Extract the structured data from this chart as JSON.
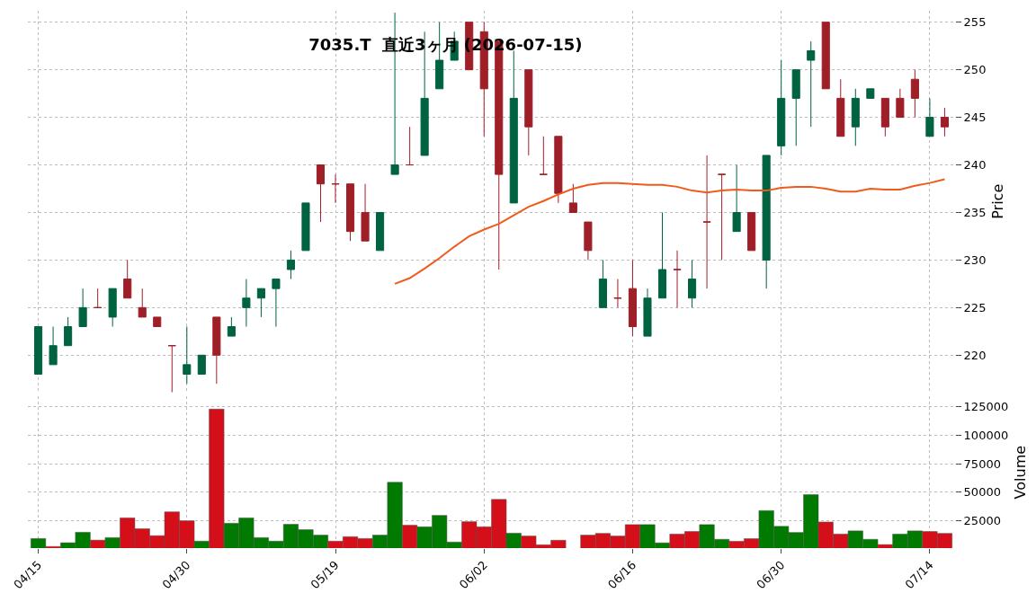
{
  "chart_data": [
    {
      "type": "candlestick",
      "title": "7035.T  直近3ヶ月 (2026-07-15)",
      "ylabel": "Price",
      "ohlc": [
        [
          218,
          223,
          218,
          223
        ],
        [
          219,
          223,
          219,
          221
        ],
        [
          221,
          224,
          221,
          223
        ],
        [
          223,
          227,
          223,
          225
        ],
        [
          225,
          227,
          225,
          225
        ],
        [
          224,
          227,
          223,
          227
        ],
        [
          228,
          230,
          226,
          226
        ],
        [
          225,
          227,
          224,
          224
        ],
        [
          224,
          224,
          223,
          223
        ],
        [
          221,
          221,
          216,
          221
        ],
        [
          218,
          223,
          217,
          219
        ],
        [
          218,
          220,
          218,
          220
        ],
        [
          224,
          224,
          217,
          220
        ],
        [
          222,
          224,
          222,
          223
        ],
        [
          225,
          228,
          223,
          226
        ],
        [
          226,
          227,
          224,
          227
        ],
        [
          227,
          228,
          223,
          228
        ],
        [
          229,
          231,
          228,
          230
        ],
        [
          231,
          236,
          231,
          236
        ],
        [
          240,
          240,
          234,
          238
        ],
        [
          238,
          239,
          236,
          238
        ],
        [
          238,
          238,
          232,
          233
        ],
        [
          235,
          238,
          232,
          232
        ],
        [
          231,
          235,
          231,
          235
        ],
        [
          239,
          256,
          239,
          240
        ],
        [
          240,
          244,
          240,
          240
        ],
        [
          241,
          254,
          241,
          247
        ],
        [
          248,
          255,
          248,
          251
        ],
        [
          251,
          254,
          251,
          253
        ],
        [
          255,
          255,
          250,
          250
        ],
        [
          254,
          255,
          243,
          248
        ],
        [
          253,
          253,
          229,
          239
        ],
        [
          236,
          252,
          236,
          247
        ],
        [
          250,
          250,
          241,
          244
        ],
        [
          239,
          243,
          239,
          239
        ],
        [
          243,
          243,
          236,
          237
        ],
        [
          236,
          238,
          235,
          235
        ],
        [
          234,
          234,
          230,
          231
        ],
        [
          225,
          230,
          225,
          228
        ],
        [
          226,
          228,
          225,
          226
        ],
        [
          227,
          230,
          222,
          223
        ],
        [
          222,
          227,
          222,
          226
        ],
        [
          226,
          235,
          226,
          229
        ],
        [
          229,
          231,
          225,
          229
        ],
        [
          226,
          230,
          225,
          228
        ],
        [
          234,
          241,
          227,
          234
        ],
        [
          239,
          239,
          230,
          239
        ],
        [
          233,
          240,
          233,
          235
        ],
        [
          235,
          235,
          231,
          231
        ],
        [
          230,
          241,
          227,
          241
        ],
        [
          242,
          251,
          241,
          247
        ],
        [
          247,
          250,
          242,
          250
        ],
        [
          251,
          253,
          244,
          252
        ],
        [
          255,
          255,
          248,
          248
        ],
        [
          247,
          249,
          243,
          243
        ],
        [
          244,
          248,
          242,
          247
        ],
        [
          247,
          248,
          247,
          248
        ],
        [
          247,
          247,
          243,
          244
        ],
        [
          247,
          248,
          245,
          245
        ],
        [
          249,
          250,
          245,
          247
        ],
        [
          243,
          247,
          243,
          245
        ],
        [
          245,
          246,
          243,
          244
        ]
      ],
      "colors": [
        "#006340",
        "#006340",
        "#006340",
        "#006340",
        "#9f1f28",
        "#006340",
        "#9f1f28",
        "#9f1f28",
        "#9f1f28",
        "#9f1f28",
        "#006340",
        "#006340",
        "#9f1f28",
        "#006340",
        "#006340",
        "#006340",
        "#006340",
        "#006340",
        "#006340",
        "#9f1f28",
        "#9f1f28",
        "#9f1f28",
        "#9f1f28",
        "#006340",
        "#006340",
        "#9f1f28",
        "#006340",
        "#006340",
        "#006340",
        "#9f1f28",
        "#9f1f28",
        "#9f1f28",
        "#006340",
        "#9f1f28",
        "#9f1f28",
        "#9f1f28",
        "#9f1f28",
        "#9f1f28",
        "#006340",
        "#9f1f28",
        "#9f1f28",
        "#006340",
        "#006340",
        "#9f1f28",
        "#006340",
        "#9f1f28",
        "#9f1f28",
        "#006340",
        "#9f1f28",
        "#006340",
        "#006340",
        "#006340",
        "#006340",
        "#9f1f28",
        "#9f1f28",
        "#006340",
        "#006340",
        "#9f1f28",
        "#9f1f28",
        "#9f1f28",
        "#006340",
        "#9f1f28"
      ],
      "series": [
        {
          "type": "line",
          "color": "#f05a1a",
          "values": [
            null,
            null,
            null,
            null,
            null,
            null,
            null,
            null,
            null,
            null,
            null,
            null,
            null,
            null,
            null,
            null,
            null,
            null,
            null,
            null,
            null,
            null,
            null,
            null,
            227.5,
            228.1,
            229.1,
            230.2,
            231.4,
            232.5,
            233.2,
            233.8,
            234.7,
            235.6,
            236.2,
            236.9,
            237.5,
            237.9,
            238.1,
            238.1,
            238.0,
            237.9,
            237.9,
            237.7,
            237.3,
            237.1,
            237.3,
            237.4,
            237.3,
            237.3,
            237.6,
            237.7,
            237.7,
            237.5,
            237.2,
            237.2,
            237.5,
            237.4,
            237.4,
            237.8,
            238.1,
            238.5
          ]
        }
      ],
      "ylim": [
        216.1,
        256.2
      ],
      "yticks": [
        220,
        225,
        230,
        235,
        240,
        245,
        250,
        255
      ],
      "grid": true,
      "tick_labels": "y"
    },
    {
      "type": "bar",
      "ylabel": "Volume",
      "categories": [
        "04/15",
        null,
        null,
        null,
        null,
        null,
        null,
        null,
        null,
        null,
        "04/30",
        null,
        null,
        null,
        null,
        null,
        null,
        null,
        null,
        null,
        "05/19",
        null,
        null,
        null,
        null,
        null,
        null,
        null,
        null,
        null,
        "06/02",
        null,
        null,
        null,
        null,
        null,
        null,
        null,
        null,
        null,
        "06/16",
        null,
        null,
        null,
        null,
        null,
        null,
        null,
        null,
        null,
        "06/30",
        null,
        null,
        null,
        null,
        null,
        null,
        null,
        null,
        null,
        "07/14",
        null
      ],
      "values": [
        9400,
        2400,
        5700,
        14900,
        8000,
        10200,
        27500,
        18000,
        11900,
        32800,
        25000,
        7100,
        123000,
        22800,
        27500,
        10200,
        7100,
        21900,
        17200,
        12400,
        7100,
        11000,
        9400,
        12400,
        58800,
        21100,
        19700,
        29700,
        6300,
        24200,
        19700,
        43700,
        14100,
        11600,
        3900,
        7900,
        null,
        12400,
        13900,
        11600,
        21600,
        21600,
        5600,
        13300,
        15600,
        21600,
        8700,
        7000,
        9300,
        33900,
        20100,
        14700,
        47900,
        23900,
        13300,
        16100,
        8700,
        4100,
        13300,
        16100,
        15600,
        13900
      ],
      "colors": [
        "#007a00",
        "#d50f1a",
        "#007a00",
        "#007a00",
        "#d50f1a",
        "#007a00",
        "#d50f1a",
        "#d50f1a",
        "#d50f1a",
        "#d50f1a",
        "#d50f1a",
        "#007a00",
        "#d50f1a",
        "#007a00",
        "#007a00",
        "#007a00",
        "#007a00",
        "#007a00",
        "#007a00",
        "#007a00",
        "#d50f1a",
        "#d50f1a",
        "#d50f1a",
        "#007a00",
        "#007a00",
        "#d50f1a",
        "#007a00",
        "#007a00",
        "#007a00",
        "#d50f1a",
        "#d50f1a",
        "#d50f1a",
        "#007a00",
        "#d50f1a",
        "#d50f1a",
        "#d50f1a",
        "#d50f1a",
        "#d50f1a",
        "#d50f1a",
        "#d50f1a",
        "#d50f1a",
        "#007a00",
        "#007a00",
        "#d50f1a",
        "#d50f1a",
        "#007a00",
        "#007a00",
        "#d50f1a",
        "#d50f1a",
        "#007a00",
        "#007a00",
        "#007a00",
        "#007a00",
        "#d50f1a",
        "#d50f1a",
        "#007a00",
        "#007a00",
        "#d50f1a",
        "#007a00",
        "#007a00",
        "#d50f1a",
        "#d50f1a"
      ],
      "ylim": [
        1000,
        134000
      ],
      "yticks": [
        25000,
        50000,
        75000,
        100000,
        125000
      ],
      "grid": true
    }
  ]
}
